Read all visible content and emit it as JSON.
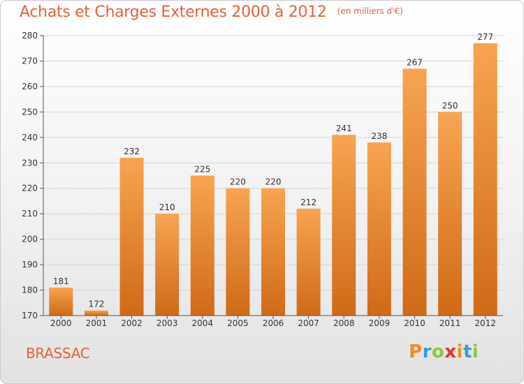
{
  "title": "Achats et Charges Externes 2000 à 2012",
  "unit_note": "(en milliers d'€)",
  "commune": "BRASSAC",
  "brand": {
    "text": "Proxiti",
    "letters": [
      {
        "ch": "P",
        "color": "#f08c1e"
      },
      {
        "ch": "r",
        "color": "#3a9ad9"
      },
      {
        "ch": "o",
        "color": "#8cc63f"
      },
      {
        "ch": "x",
        "color": "#e5312f"
      },
      {
        "ch": "i",
        "color": "#f08c1e"
      },
      {
        "ch": "t",
        "color": "#3a9ad9"
      },
      {
        "ch": "i",
        "color": "#8cc63f"
      }
    ]
  },
  "colors": {
    "title": "#e4623a",
    "bar_top": "#f7a452",
    "bar_bottom": "#cf6a17",
    "axis": "#555555",
    "grid": "#d4d4d4",
    "text": "#333333"
  },
  "chart_data": {
    "type": "bar",
    "title": "Achats et Charges Externes 2000 à 2012",
    "subtitle": "(en milliers d'€)",
    "xlabel": "",
    "ylabel": "",
    "categories": [
      "2000",
      "2001",
      "2002",
      "2003",
      "2004",
      "2005",
      "2006",
      "2007",
      "2008",
      "2009",
      "2010",
      "2011",
      "2012"
    ],
    "values": [
      181,
      172,
      232,
      210,
      225,
      220,
      220,
      212,
      241,
      238,
      267,
      250,
      277
    ],
    "ylim": [
      170,
      280
    ],
    "yticks": [
      170,
      180,
      190,
      200,
      210,
      220,
      230,
      240,
      250,
      260,
      270,
      280
    ],
    "grid": true,
    "data_labels": true,
    "legend": "none"
  }
}
